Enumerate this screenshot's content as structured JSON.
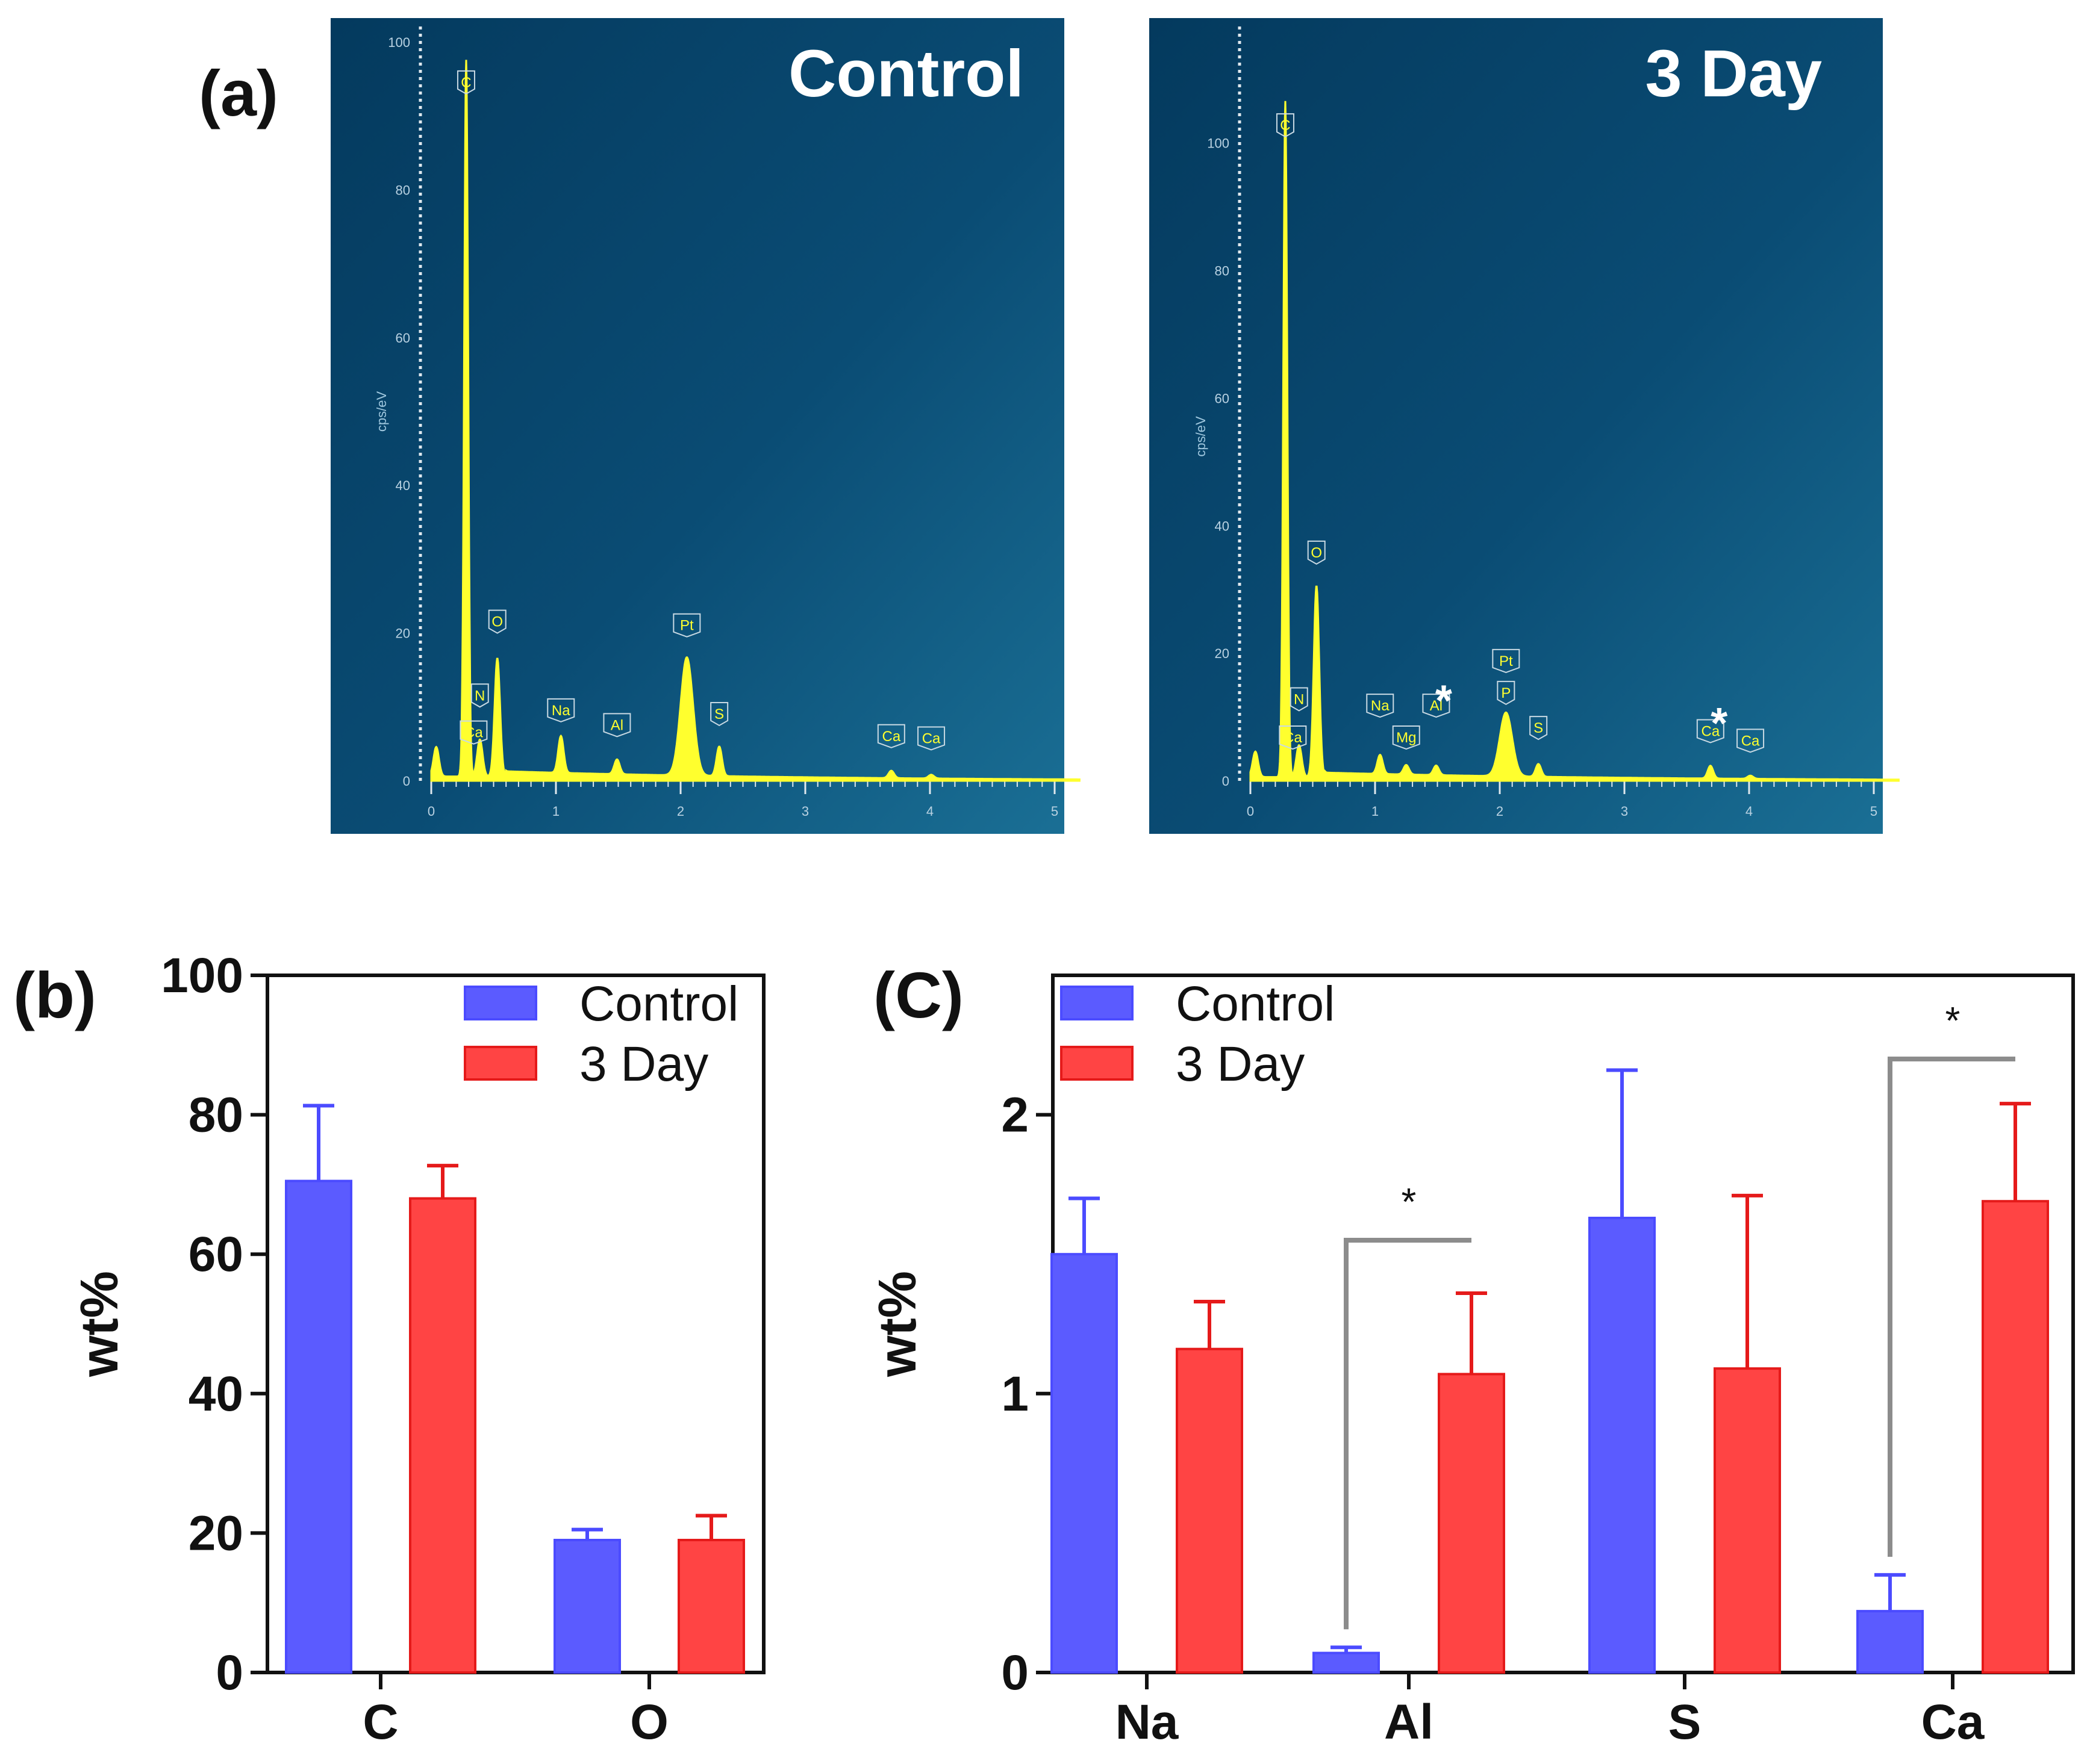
{
  "panel_labels": {
    "a": "(a)",
    "b": "(b)",
    "c": "(C)"
  },
  "chart_data": [
    {
      "id": "eds-control",
      "type": "line",
      "title": "Control",
      "ylabel": "cps/eV",
      "xlim": [
        0,
        5.2
      ],
      "ylim": [
        0,
        100
      ],
      "x_ticks": [
        "0",
        "1",
        "2",
        "3",
        "4",
        "5"
      ],
      "y_ticks": [
        "0",
        "20",
        "40",
        "60",
        "80",
        "100"
      ],
      "peaks": [
        {
          "x": 0.04,
          "y": 4
        },
        {
          "x": 0.28,
          "y": 97
        },
        {
          "x": 0.39,
          "y": 5
        },
        {
          "x": 0.53,
          "y": 16
        },
        {
          "x": 1.04,
          "y": 5
        },
        {
          "x": 1.49,
          "y": 2
        },
        {
          "x": 2.05,
          "y": 16
        },
        {
          "x": 2.31,
          "y": 4
        },
        {
          "x": 3.69,
          "y": 1
        },
        {
          "x": 4.01,
          "y": 0.5
        }
      ],
      "element_labels": [
        {
          "text": "C",
          "x": 0.28,
          "y": 93
        },
        {
          "text": "Ca",
          "x": 0.34,
          "y": 5
        },
        {
          "text": "N",
          "x": 0.39,
          "y": 10
        },
        {
          "text": "O",
          "x": 0.53,
          "y": 20
        },
        {
          "text": "Na",
          "x": 1.04,
          "y": 8
        },
        {
          "text": "Al",
          "x": 1.49,
          "y": 6
        },
        {
          "text": "Pt",
          "x": 2.05,
          "y": 19.5
        },
        {
          "text": "S",
          "x": 2.31,
          "y": 7.5
        },
        {
          "text": "Ca",
          "x": 3.69,
          "y": 4.5
        },
        {
          "text": "Ca",
          "x": 4.01,
          "y": 4.2
        }
      ],
      "annotations": []
    },
    {
      "id": "eds-3day",
      "type": "line",
      "title": "3 Day",
      "ylabel": "cps/eV",
      "xlim": [
        0,
        5.2
      ],
      "ylim": [
        0,
        108
      ],
      "x_ticks": [
        "0",
        "1",
        "2",
        "3",
        "4",
        "5"
      ],
      "y_ticks": [
        "0",
        "20",
        "40",
        "60",
        "80",
        "100"
      ],
      "peaks": [
        {
          "x": 0.04,
          "y": 4
        },
        {
          "x": 0.28,
          "y": 106
        },
        {
          "x": 0.39,
          "y": 5
        },
        {
          "x": 0.53,
          "y": 30
        },
        {
          "x": 1.04,
          "y": 3
        },
        {
          "x": 1.25,
          "y": 1.5
        },
        {
          "x": 1.49,
          "y": 1.5
        },
        {
          "x": 2.05,
          "y": 10
        },
        {
          "x": 2.31,
          "y": 2
        },
        {
          "x": 3.69,
          "y": 2
        },
        {
          "x": 4.01,
          "y": 0.5
        }
      ],
      "element_labels": [
        {
          "text": "C",
          "x": 0.28,
          "y": 101
        },
        {
          "text": "Ca",
          "x": 0.34,
          "y": 5
        },
        {
          "text": "N",
          "x": 0.39,
          "y": 11
        },
        {
          "text": "O",
          "x": 0.53,
          "y": 34
        },
        {
          "text": "Na",
          "x": 1.04,
          "y": 10
        },
        {
          "text": "Mg",
          "x": 1.25,
          "y": 5
        },
        {
          "text": "Al",
          "x": 1.49,
          "y": 10
        },
        {
          "text": "Pt",
          "x": 2.05,
          "y": 17
        },
        {
          "text": "P",
          "x": 2.05,
          "y": 12
        },
        {
          "text": "S",
          "x": 2.31,
          "y": 6.5
        },
        {
          "text": "Ca",
          "x": 3.69,
          "y": 6
        },
        {
          "text": "Ca",
          "x": 4.01,
          "y": 4.5
        }
      ],
      "annotations": [
        {
          "text": "*",
          "x": 1.55,
          "y": 14
        },
        {
          "text": "*",
          "x": 3.76,
          "y": 10.5
        }
      ]
    },
    {
      "id": "wt-major",
      "type": "bar",
      "title": "",
      "ylabel": "wt%",
      "categories": [
        "C",
        "O"
      ],
      "ylim": [
        0,
        100
      ],
      "y_ticks": [
        "0",
        "20",
        "40",
        "60",
        "80",
        "100"
      ],
      "series": [
        {
          "name": "Control",
          "color": "#5b5bff",
          "values": [
            70.5,
            19
          ],
          "errors": [
            10.8,
            1.5
          ]
        },
        {
          "name": "3 Day",
          "color": "#ff4444",
          "values": [
            68,
            19
          ],
          "errors": [
            4.7,
            3.5
          ]
        }
      ],
      "legend": "top-right",
      "significance": []
    },
    {
      "id": "wt-minor",
      "type": "bar",
      "title": "",
      "ylabel": "wt%",
      "categories": [
        "Na",
        "Al",
        "S",
        "Ca"
      ],
      "ylim": [
        0,
        2.5
      ],
      "y_ticks": [
        "0",
        "1",
        "2"
      ],
      "series": [
        {
          "name": "Control",
          "color": "#5b5bff",
          "values": [
            1.5,
            0.07,
            1.63,
            0.22
          ],
          "errors": [
            0.2,
            0.02,
            0.53,
            0.13
          ]
        },
        {
          "name": "3 Day",
          "color": "#ff4444",
          "values": [
            1.16,
            1.07,
            1.09,
            1.69
          ],
          "errors": [
            0.17,
            0.29,
            0.62,
            0.35
          ]
        }
      ],
      "legend": "top-left",
      "significance": [
        {
          "category": "Al",
          "label": "*",
          "bracket_y": 1.55
        },
        {
          "category": "Ca",
          "label": "*",
          "bracket_y": 2.2
        }
      ]
    }
  ]
}
